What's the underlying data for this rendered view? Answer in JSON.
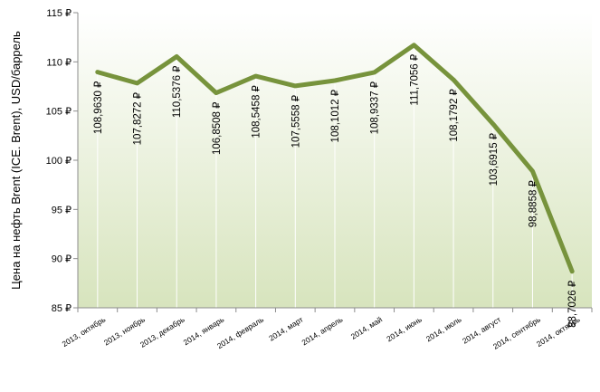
{
  "chart_data": {
    "type": "line",
    "ylabel": "Цена на нефть Brent (ICE. Brent), USD/баррель",
    "xlabel": "",
    "title": "",
    "ylim": [
      85,
      115
    ],
    "yticks": [
      85,
      90,
      95,
      100,
      105,
      110,
      115
    ],
    "ytick_labels": [
      "85 ₽",
      "90 ₽",
      "95 ₽",
      "100 ₽",
      "105 ₽",
      "110 ₽",
      "115 ₽"
    ],
    "categories": [
      "2013, октябрь",
      "2013, ноябрь",
      "2013, декабрь",
      "2014, январь",
      "2014, февраль",
      "2014, март",
      "2014, апрель",
      "2014, май",
      "2014, июнь",
      "2014, июль",
      "2014, август",
      "2014, сентябрь",
      "2014, октябрь"
    ],
    "values": [
      108.963,
      107.8272,
      110.5376,
      106.8508,
      108.5458,
      107.5558,
      108.1012,
      108.9337,
      111.7056,
      108.1792,
      103.6915,
      98.8858,
      88.7026
    ],
    "data_labels": [
      "108,9630 ₽",
      "107,8272 ₽",
      "110,5376 ₽",
      "106,8508 ₽",
      "108,5458 ₽",
      "107,5558 ₽",
      "108,1012 ₽",
      "108,9337 ₽",
      "111,7056 ₽",
      "108,1792 ₽",
      "103,6915 ₽",
      "98,8858 ₽",
      "88,7026 ₽"
    ],
    "grid": false,
    "legend": "none",
    "colors": {
      "line": "#77933c",
      "plot_bg_top": "#ffffff",
      "plot_bg_bottom": "#d7e4bd",
      "axis": "#8c8c8c"
    }
  }
}
